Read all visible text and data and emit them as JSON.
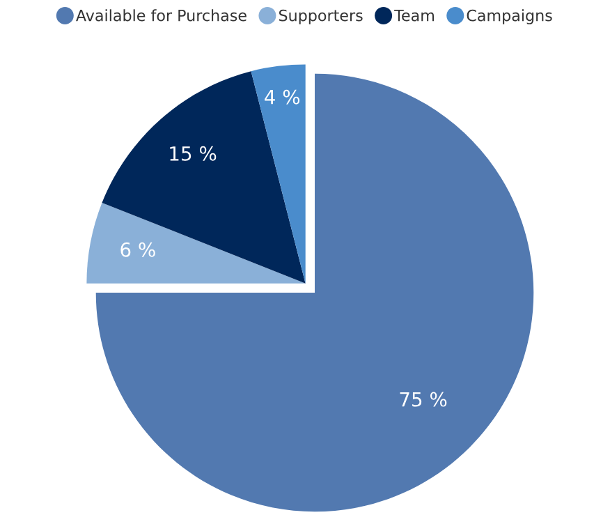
{
  "chart_data": {
    "type": "pie",
    "categories": [
      "Available for Purchase",
      "Supporters",
      "Team",
      "Campaigns"
    ],
    "values": [
      75,
      6,
      15,
      4
    ],
    "colors": [
      "#5279b0",
      "#8ab0d8",
      "#00275a",
      "#4a8ccc"
    ],
    "value_labels": [
      "75 %",
      "6 %",
      "15 %",
      "4 %"
    ],
    "legend": "top"
  }
}
